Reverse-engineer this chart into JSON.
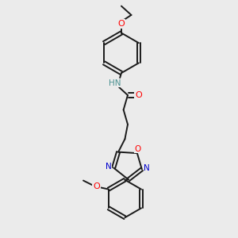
{
  "background_color": "#ebebeb",
  "bond_color": "#1a1a1a",
  "atom_colors": {
    "O": "#ff0000",
    "N": "#0000cd",
    "C": "#1a1a1a",
    "H": "#4a9090"
  },
  "figsize": [
    3.0,
    3.0
  ],
  "dpi": 100
}
